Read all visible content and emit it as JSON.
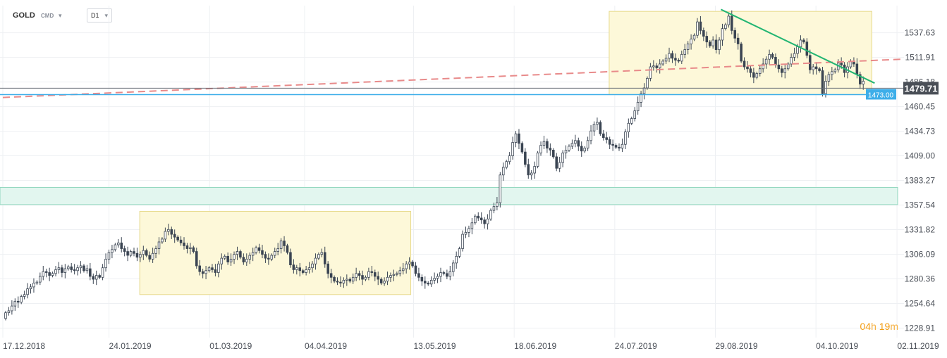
{
  "toolbar": {
    "symbol": "GOLD",
    "source": "CMD",
    "dropdown_icon": "triangle-down-icon",
    "timeframe": "D1"
  },
  "countdown": {
    "hours": "04",
    "hours_unit": "h",
    "minutes": "19",
    "minutes_unit": "m"
  },
  "colors": {
    "bull": "#ffffff",
    "bear": "#3a4452",
    "wick": "#3a4452",
    "zone_fill": "#fdf8d9",
    "zone_border": "#e6d98a",
    "band_fill": "#e2f6ef",
    "band_border": "#8fd6bd",
    "dashed_trend": "#e88a8a",
    "falling_trend": "#22b573",
    "support_line": "#3daee9",
    "price_line": "#666c75",
    "price_label_bg": "#4a4f57",
    "support_label_bg": "#3daee9",
    "grid": "#eef0f3"
  },
  "chart_data": {
    "type": "candlestick",
    "instrument": "GOLD",
    "timeframe": "D1",
    "y_axis": {
      "range": [
        1219,
        1566
      ],
      "ticks": [
        "1537.63",
        "1511.91",
        "1486.18",
        "1460.45",
        "1434.73",
        "1409.00",
        "1383.27",
        "1357.54",
        "1331.82",
        "1306.09",
        "1280.36",
        "1254.64",
        "1228.91"
      ],
      "position": "right"
    },
    "x_axis": {
      "range": [
        "2018-12-17",
        "2019-11-04"
      ],
      "ticks": [
        {
          "date": "2018-12-17",
          "label": "17.12.2018"
        },
        {
          "date": "2019-01-24",
          "label": "24.01.2019"
        },
        {
          "date": "2019-03-01",
          "label": "01.03.2019"
        },
        {
          "date": "2019-04-04",
          "label": "04.04.2019"
        },
        {
          "date": "2019-05-13",
          "label": "13.05.2019"
        },
        {
          "date": "2019-06-18",
          "label": "18.06.2019"
        },
        {
          "date": "2019-07-24",
          "label": "24.07.2019"
        },
        {
          "date": "2019-08-29",
          "label": "29.08.2019"
        },
        {
          "date": "2019-10-04",
          "label": "04.10.2019"
        },
        {
          "date": "2019-11-02",
          "label": "02.11.2019"
        }
      ]
    },
    "grid": true,
    "closes": [
      1245,
      1247,
      1252,
      1257,
      1256,
      1262,
      1264,
      1270,
      1272,
      1276,
      1277,
      1283,
      1288,
      1287,
      1284,
      1286,
      1290,
      1292,
      1287,
      1291,
      1293,
      1290,
      1289,
      1292,
      1294,
      1289,
      1291,
      1283,
      1280,
      1284,
      1282,
      1292,
      1301,
      1308,
      1311,
      1316,
      1318,
      1312,
      1309,
      1305,
      1309,
      1307,
      1303,
      1306,
      1310,
      1305,
      1301,
      1307,
      1312,
      1319,
      1322,
      1330,
      1332,
      1327,
      1324,
      1321,
      1318,
      1315,
      1312,
      1313,
      1309,
      1294,
      1288,
      1286,
      1289,
      1292,
      1290,
      1287,
      1296,
      1302,
      1304,
      1298,
      1301,
      1306,
      1309,
      1303,
      1298,
      1301,
      1305,
      1308,
      1313,
      1310,
      1306,
      1302,
      1301,
      1305,
      1309,
      1312,
      1320,
      1315,
      1308,
      1295,
      1290,
      1292,
      1289,
      1287,
      1290,
      1292,
      1296,
      1302,
      1306,
      1308,
      1296,
      1286,
      1282,
      1278,
      1277,
      1276,
      1279,
      1280,
      1278,
      1282,
      1286,
      1284,
      1280,
      1282,
      1288,
      1287,
      1283,
      1280,
      1276,
      1278,
      1282,
      1284,
      1285,
      1286,
      1289,
      1291,
      1296,
      1298,
      1294,
      1286,
      1282,
      1278,
      1276,
      1275,
      1279,
      1281,
      1283,
      1287,
      1286,
      1283,
      1288,
      1297,
      1304,
      1312,
      1327,
      1329,
      1333,
      1339,
      1346,
      1344,
      1342,
      1338,
      1343,
      1352,
      1356,
      1360,
      1389,
      1397,
      1403,
      1409,
      1423,
      1432,
      1422,
      1413,
      1400,
      1389,
      1391,
      1398,
      1412,
      1420,
      1424,
      1417,
      1415,
      1408,
      1396,
      1402,
      1412,
      1415,
      1419,
      1422,
      1425,
      1419,
      1414,
      1417,
      1425,
      1435,
      1442,
      1444,
      1432,
      1428,
      1426,
      1421,
      1420,
      1418,
      1417,
      1421,
      1434,
      1443,
      1448,
      1456,
      1465,
      1474,
      1480,
      1490,
      1502,
      1503,
      1501,
      1505,
      1508,
      1511,
      1516,
      1511,
      1509,
      1508,
      1515,
      1520,
      1526,
      1531,
      1535,
      1549,
      1540,
      1534,
      1528,
      1524,
      1530,
      1520,
      1530,
      1542,
      1546,
      1555,
      1540,
      1532,
      1526,
      1508,
      1502,
      1500,
      1496,
      1491,
      1495,
      1500,
      1505,
      1510,
      1515,
      1512,
      1504,
      1500,
      1496,
      1500,
      1505,
      1512,
      1516,
      1523,
      1530,
      1528,
      1514,
      1499,
      1502,
      1500,
      1498,
      1474,
      1487,
      1494,
      1497,
      1499,
      1506,
      1504,
      1496,
      1502,
      1508,
      1505,
      1494,
      1484,
      1487
    ],
    "last_price": 1479.71,
    "annotations": {
      "horizontal_lines": [
        {
          "value": 1473.0
        },
        {
          "value": 1479.71
        }
      ],
      "zones": [
        {
          "from": "2019-02-04",
          "to": "2019-05-12",
          "low": 1264,
          "high": 1351
        },
        {
          "from": "2019-07-22",
          "to": "2019-10-24",
          "low": 1473,
          "high": 1560
        }
      ],
      "band": {
        "low": 1358,
        "high": 1376
      },
      "trendlines": [
        {
          "style": "dashed",
          "from": {
            "date": "2018-12-17",
            "value": 1470
          },
          "to": {
            "date": "2019-11-04",
            "value": 1510
          }
        },
        {
          "style": "solid",
          "from": {
            "date": "2019-08-31",
            "value": 1562
          },
          "to": {
            "date": "2019-10-25",
            "value": 1485
          }
        }
      ]
    }
  }
}
